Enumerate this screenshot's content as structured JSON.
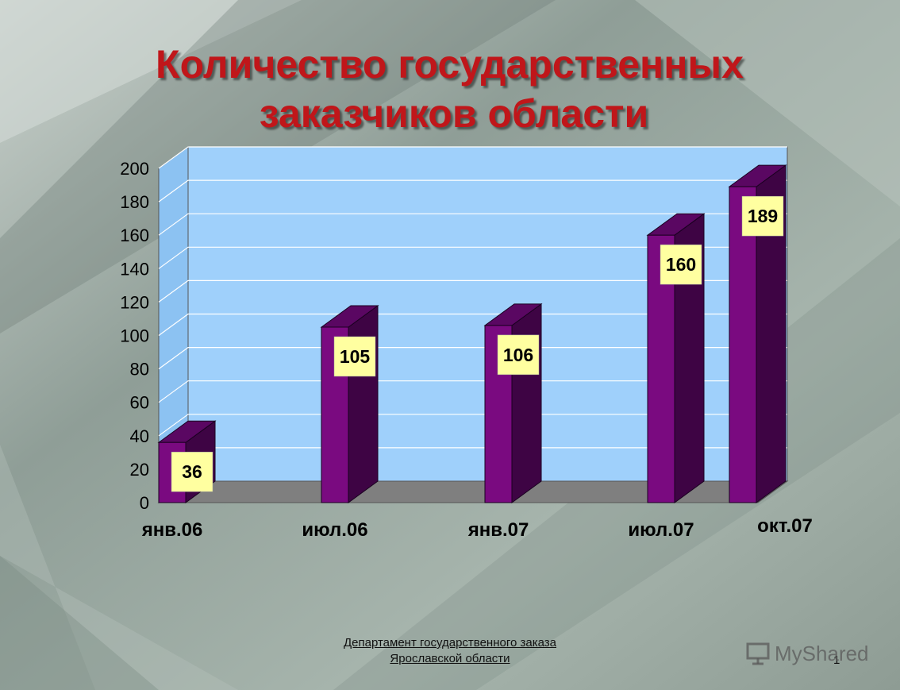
{
  "slide": {
    "title_line1": "Количество государственных",
    "title_line2": "заказчиков области",
    "footer_line1": "Департамент государственного заказа",
    "footer_line2": "Ярославской области",
    "page_number": "1",
    "watermark": "MyShared",
    "watermark_icon": "presentation-board-icon"
  },
  "colors": {
    "title": "#c0161a",
    "bar_front": "#7a0a80",
    "bar_side": "#3e0444",
    "bar_top": "#5a0762",
    "plot_wall": "#9fd0fb",
    "floor": "#7f7f7f",
    "label_box": "#ffffa0"
  },
  "chart_data": {
    "type": "bar",
    "categories": [
      "янв.06",
      "июл.06",
      "янв.07",
      "июл.07",
      "окт.07"
    ],
    "values": [
      36,
      105,
      106,
      160,
      189
    ],
    "data_labels": [
      "36",
      "105",
      "106",
      "160",
      "189"
    ],
    "yticks": [
      "0",
      "20",
      "40",
      "60",
      "80",
      "100",
      "120",
      "140",
      "160",
      "180",
      "200"
    ],
    "ylim": [
      0,
      200
    ],
    "grid": true,
    "legend": "none",
    "style": "3d-column"
  }
}
